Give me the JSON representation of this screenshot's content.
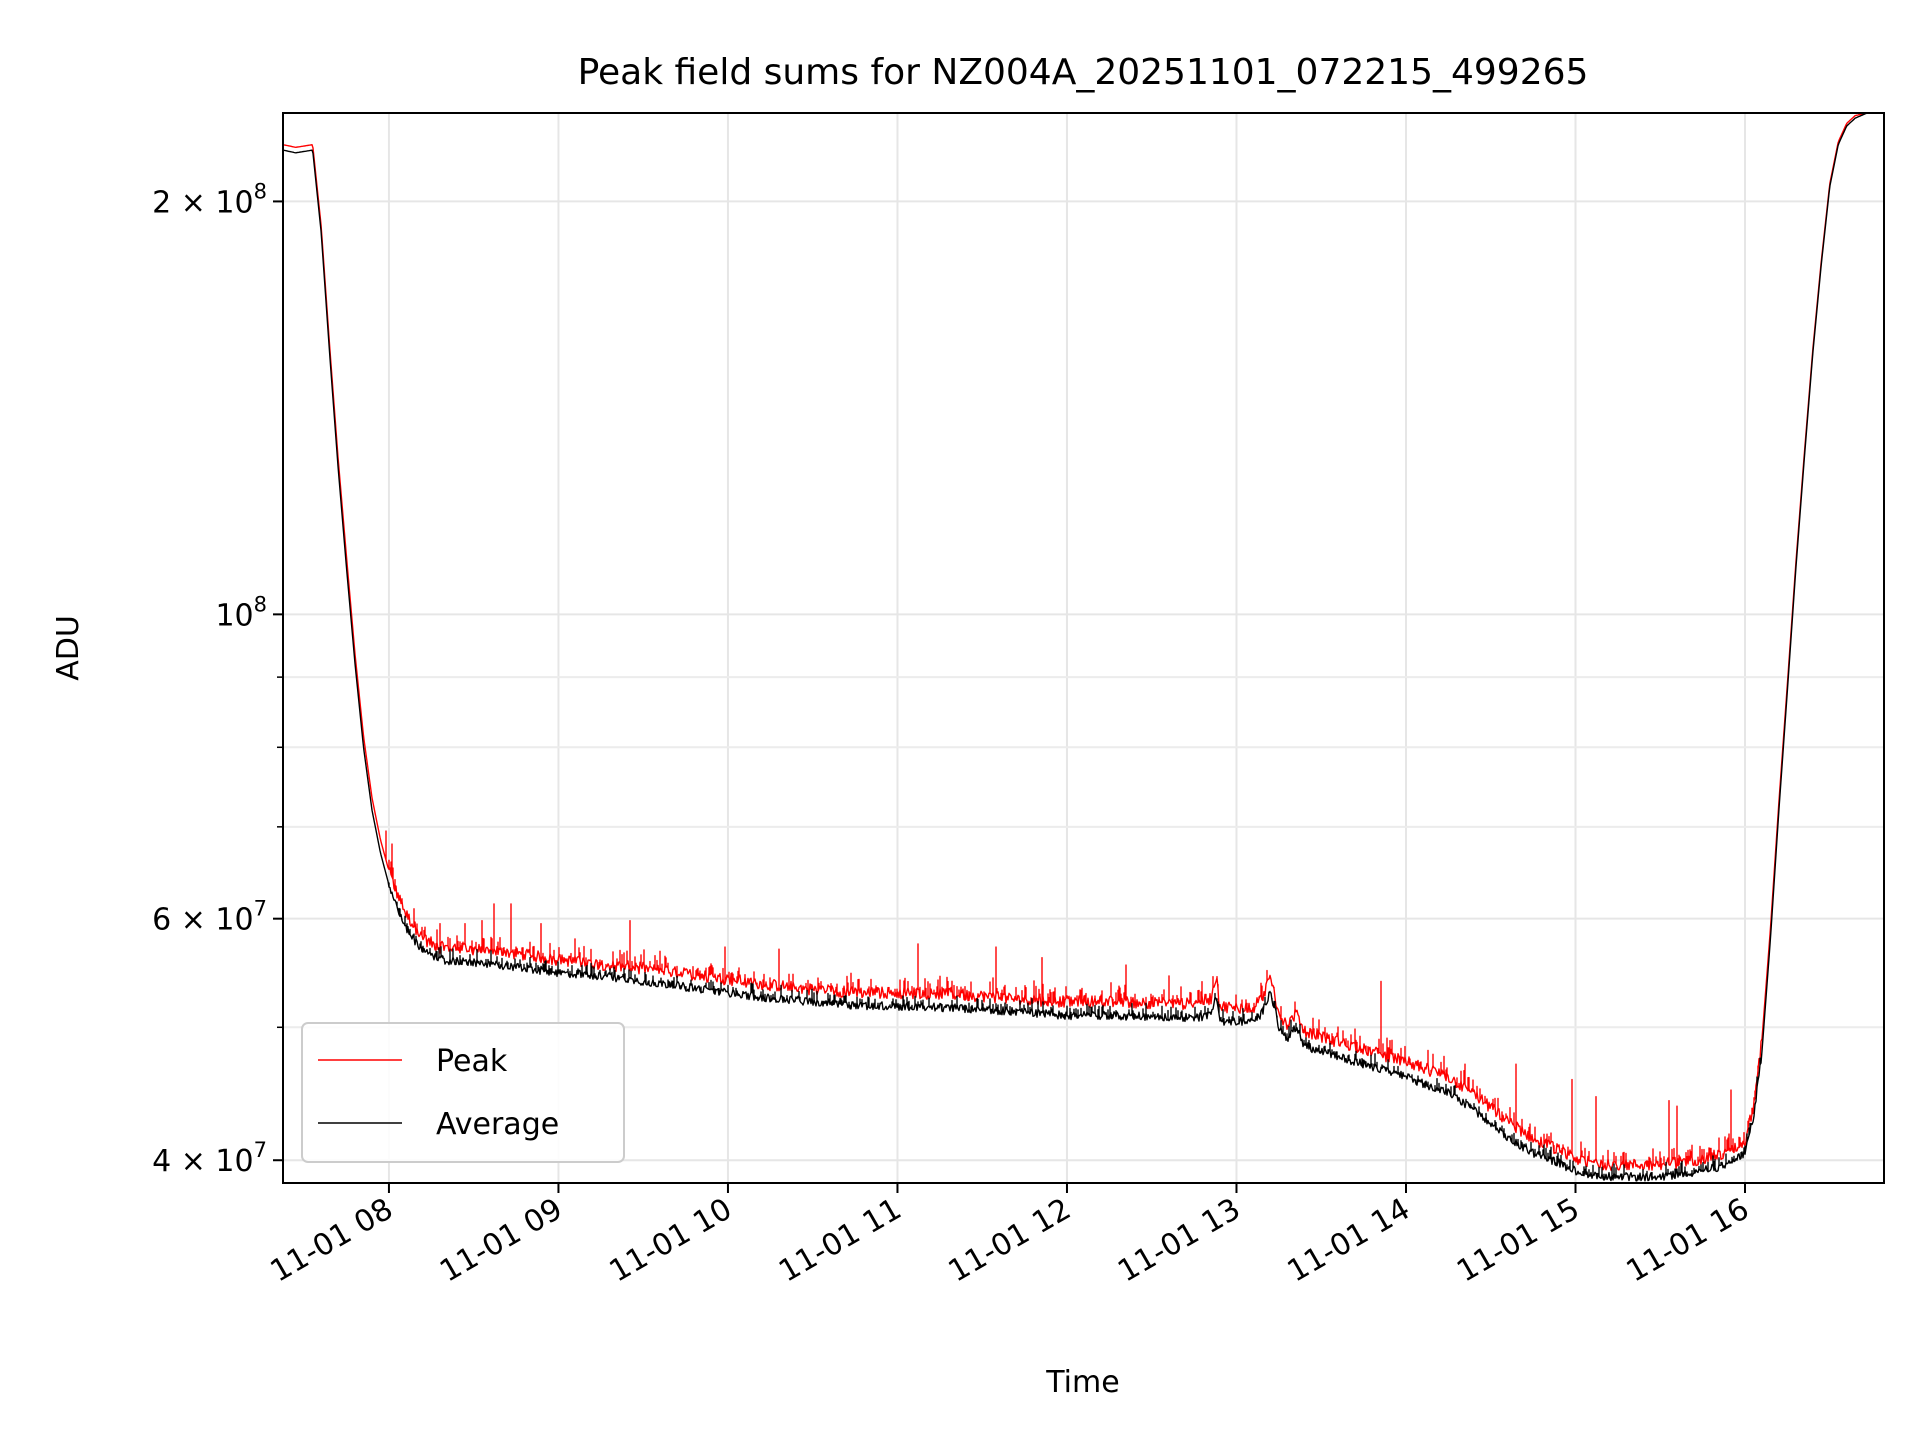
{
  "chart_data": {
    "type": "line",
    "title": "Peak field sums for NZ004A_20251101_072215_499265",
    "xlabel": "Time",
    "ylabel": "ADU",
    "yscale": "log",
    "grid": true,
    "legend_position": "lower-left",
    "xlim_hours": [
      7.375,
      16.82
    ],
    "ylim": [
      38500000,
      232000000
    ],
    "x_ticks": [
      {
        "hour": 8,
        "label": "11-01 08"
      },
      {
        "hour": 9,
        "label": "11-01 09"
      },
      {
        "hour": 10,
        "label": "11-01 10"
      },
      {
        "hour": 11,
        "label": "11-01 11"
      },
      {
        "hour": 12,
        "label": "11-01 12"
      },
      {
        "hour": 13,
        "label": "11-01 13"
      },
      {
        "hour": 14,
        "label": "11-01 14"
      },
      {
        "hour": 15,
        "label": "11-01 15"
      },
      {
        "hour": 16,
        "label": "11-01 16"
      }
    ],
    "y_ticks": [
      {
        "value": 40000000,
        "mantissa": "4",
        "exp": "7",
        "form": "m"
      },
      {
        "value": 60000000,
        "mantissa": "6",
        "exp": "7",
        "form": "m"
      },
      {
        "value": 100000000,
        "mantissa": "",
        "exp": "8",
        "form": "p"
      },
      {
        "value": 200000000,
        "mantissa": "2",
        "exp": "8",
        "form": "m"
      }
    ],
    "y_minor_ticks": [
      50000000,
      70000000,
      80000000,
      90000000
    ],
    "series": [
      {
        "name": "Average",
        "color": "#000000",
        "points": [
          [
            7.375,
            218000000.0
          ],
          [
            7.45,
            217000000.0
          ],
          [
            7.55,
            218000000.0
          ],
          [
            7.6,
            190000000.0
          ],
          [
            7.65,
            155000000.0
          ],
          [
            7.7,
            128000000.0
          ],
          [
            7.75,
            108000000.0
          ],
          [
            7.8,
            92000000.0
          ],
          [
            7.85,
            80000000.0
          ],
          [
            7.9,
            72000000.0
          ],
          [
            7.95,
            67000000.0
          ],
          [
            8.0,
            63500000.0
          ],
          [
            8.05,
            61000000.0
          ],
          [
            8.1,
            59000000.0
          ],
          [
            8.2,
            56800000.0
          ],
          [
            8.3,
            56000000.0
          ],
          [
            8.5,
            55700000.0
          ],
          [
            8.75,
            55300000.0
          ],
          [
            9.0,
            54800000.0
          ],
          [
            9.25,
            54500000.0
          ],
          [
            9.5,
            54000000.0
          ],
          [
            9.75,
            53500000.0
          ],
          [
            10.0,
            53000000.0
          ],
          [
            10.25,
            52500000.0
          ],
          [
            10.5,
            52200000.0
          ],
          [
            10.75,
            51900000.0
          ],
          [
            11.0,
            51800000.0
          ],
          [
            11.25,
            51700000.0
          ],
          [
            11.5,
            51500000.0
          ],
          [
            11.75,
            51300000.0
          ],
          [
            12.0,
            51000000.0
          ],
          [
            12.25,
            51000000.0
          ],
          [
            12.5,
            50900000.0
          ],
          [
            12.75,
            50800000.0
          ],
          [
            12.85,
            51000000.0
          ],
          [
            12.88,
            52800000.0
          ],
          [
            12.9,
            50500000.0
          ],
          [
            13.0,
            50500000.0
          ],
          [
            13.1,
            50500000.0
          ],
          [
            13.15,
            51200000.0
          ],
          [
            13.2,
            53200000.0
          ],
          [
            13.25,
            50000000.0
          ],
          [
            13.3,
            49000000.0
          ],
          [
            13.35,
            50000000.0
          ],
          [
            13.4,
            48500000.0
          ],
          [
            13.5,
            48000000.0
          ],
          [
            13.75,
            47000000.0
          ],
          [
            14.0,
            46000000.0
          ],
          [
            14.25,
            44800000.0
          ],
          [
            14.4,
            43500000.0
          ],
          [
            14.5,
            42500000.0
          ],
          [
            14.6,
            41500000.0
          ],
          [
            14.75,
            40500000.0
          ],
          [
            14.9,
            39800000.0
          ],
          [
            15.0,
            39300000.0
          ],
          [
            15.1,
            39000000.0
          ],
          [
            15.25,
            38900000.0
          ],
          [
            15.5,
            38900000.0
          ],
          [
            15.75,
            39300000.0
          ],
          [
            15.9,
            39700000.0
          ],
          [
            16.0,
            40500000.0
          ],
          [
            16.05,
            43000000.0
          ],
          [
            16.1,
            48000000.0
          ],
          [
            16.15,
            58000000.0
          ],
          [
            16.2,
            72000000.0
          ],
          [
            16.25,
            88000000.0
          ],
          [
            16.3,
            108000000.0
          ],
          [
            16.35,
            130000000.0
          ],
          [
            16.4,
            155000000.0
          ],
          [
            16.45,
            180000000.0
          ],
          [
            16.5,
            205000000.0
          ],
          [
            16.55,
            220000000.0
          ],
          [
            16.6,
            227000000.0
          ],
          [
            16.65,
            230000000.0
          ],
          [
            16.72,
            232000000.0
          ],
          [
            16.82,
            232000000.0
          ]
        ]
      },
      {
        "name": "Peak",
        "color": "#ff0000",
        "points": [
          [
            7.375,
            220000000.0
          ],
          [
            7.45,
            219000000.0
          ],
          [
            7.55,
            220000000.0
          ],
          [
            7.6,
            192000000.0
          ],
          [
            7.65,
            157000000.0
          ],
          [
            7.7,
            130000000.0
          ],
          [
            7.75,
            110000000.0
          ],
          [
            7.8,
            93500000.0
          ],
          [
            7.85,
            81500000.0
          ],
          [
            7.9,
            73500000.0
          ],
          [
            7.95,
            68500000.0
          ],
          [
            8.0,
            65000000.0
          ],
          [
            8.05,
            62500000.0
          ],
          [
            8.1,
            60500000.0
          ],
          [
            8.2,
            58000000.0
          ],
          [
            8.3,
            57200000.0
          ],
          [
            8.5,
            57000000.0
          ],
          [
            8.75,
            56600000.0
          ],
          [
            9.0,
            56000000.0
          ],
          [
            9.25,
            55600000.0
          ],
          [
            9.5,
            55200000.0
          ],
          [
            9.75,
            54700000.0
          ],
          [
            10.0,
            54200000.0
          ],
          [
            10.25,
            53700000.0
          ],
          [
            10.5,
            53300000.0
          ],
          [
            10.75,
            53000000.0
          ],
          [
            11.0,
            53000000.0
          ],
          [
            11.25,
            52900000.0
          ],
          [
            11.5,
            52700000.0
          ],
          [
            11.75,
            52400000.0
          ],
          [
            12.0,
            52200000.0
          ],
          [
            12.25,
            52200000.0
          ],
          [
            12.5,
            52100000.0
          ],
          [
            12.75,
            52000000.0
          ],
          [
            12.85,
            52500000.0
          ],
          [
            12.88,
            54500000.0
          ],
          [
            12.9,
            51800000.0
          ],
          [
            13.0,
            51700000.0
          ],
          [
            13.1,
            51700000.0
          ],
          [
            13.15,
            52500000.0
          ],
          [
            13.2,
            54500000.0
          ],
          [
            13.25,
            51200000.0
          ],
          [
            13.3,
            50200000.0
          ],
          [
            13.35,
            51200000.0
          ],
          [
            13.4,
            49700000.0
          ],
          [
            13.5,
            49200000.0
          ],
          [
            13.75,
            48200000.0
          ],
          [
            14.0,
            47200000.0
          ],
          [
            14.25,
            46000000.0
          ],
          [
            14.4,
            44700000.0
          ],
          [
            14.5,
            43700000.0
          ],
          [
            14.6,
            42700000.0
          ],
          [
            14.75,
            41500000.0
          ],
          [
            14.9,
            40700000.0
          ],
          [
            15.0,
            40100000.0
          ],
          [
            15.1,
            39800000.0
          ],
          [
            15.25,
            39700000.0
          ],
          [
            15.5,
            39700000.0
          ],
          [
            15.75,
            40100000.0
          ],
          [
            15.9,
            40500000.0
          ],
          [
            16.0,
            41300000.0
          ],
          [
            16.05,
            43800000.0
          ],
          [
            16.1,
            49000000.0
          ],
          [
            16.15,
            59000000.0
          ],
          [
            16.2,
            73000000.0
          ],
          [
            16.25,
            89000000.0
          ],
          [
            16.3,
            109000000.0
          ],
          [
            16.35,
            131000000.0
          ],
          [
            16.4,
            156000000.0
          ],
          [
            16.45,
            181000000.0
          ],
          [
            16.5,
            206000000.0
          ],
          [
            16.55,
            221000000.0
          ],
          [
            16.6,
            228000000.0
          ],
          [
            16.65,
            231000000.0
          ],
          [
            16.72,
            232000000.0
          ],
          [
            16.82,
            232000000.0
          ]
        ],
        "spikes": [
          [
            7.98,
            69500000.0
          ],
          [
            8.02,
            68000000.0
          ],
          [
            8.15,
            61000000.0
          ],
          [
            8.3,
            59500000.0
          ],
          [
            8.45,
            59500000.0
          ],
          [
            8.55,
            59800000.0
          ],
          [
            8.62,
            61500000.0
          ],
          [
            8.72,
            61500000.0
          ],
          [
            8.9,
            59500000.0
          ],
          [
            9.1,
            58000000.0
          ],
          [
            9.42,
            59800000.0
          ],
          [
            9.6,
            56800000.0
          ],
          [
            9.98,
            57200000.0
          ],
          [
            10.3,
            57000000.0
          ],
          [
            11.12,
            57500000.0
          ],
          [
            11.58,
            57200000.0
          ],
          [
            11.85,
            56200000.0
          ],
          [
            12.35,
            55500000.0
          ],
          [
            12.6,
            54500000.0
          ],
          [
            13.85,
            54000000.0
          ],
          [
            14.35,
            47000000.0
          ],
          [
            14.65,
            47000000.0
          ],
          [
            14.98,
            45800000.0
          ],
          [
            15.12,
            44500000.0
          ],
          [
            15.55,
            44200000.0
          ],
          [
            15.6,
            43800000.0
          ],
          [
            15.92,
            45000000.0
          ]
        ]
      }
    ],
    "legend": [
      {
        "label": "Peak",
        "color": "#ff0000"
      },
      {
        "label": "Average",
        "color": "#000000"
      }
    ]
  }
}
